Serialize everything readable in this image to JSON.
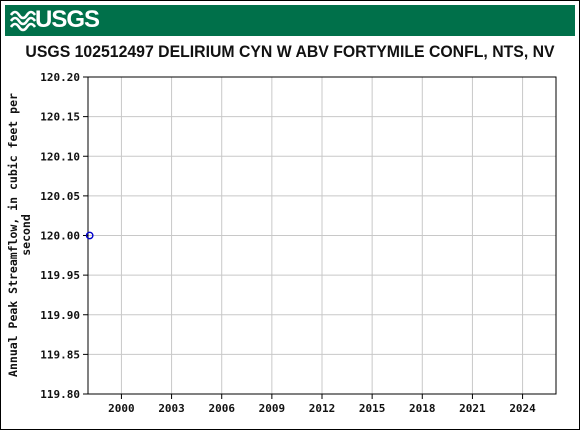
{
  "header": {
    "logo_text": "USGS",
    "brand_color": "#00704a"
  },
  "chart_data": {
    "type": "scatter",
    "title": "USGS 102512497 DELIRIUM CYN W ABV FORTYMILE CONFL, NTS, NV",
    "xlabel": "",
    "ylabel": "Annual Peak Streamflow, in cubic feet per second",
    "xlim": [
      1998,
      2026
    ],
    "ylim": [
      119.8,
      120.2
    ],
    "x_ticks": [
      2000,
      2003,
      2006,
      2009,
      2012,
      2015,
      2018,
      2021,
      2024
    ],
    "y_ticks": [
      119.8,
      119.85,
      119.9,
      119.95,
      120.0,
      120.05,
      120.1,
      120.15,
      120.2
    ],
    "y_tick_labels": [
      "119.80",
      "119.85",
      "119.90",
      "119.95",
      "120.00",
      "120.05",
      "120.10",
      "120.15",
      "120.20"
    ],
    "grid": true,
    "series": [
      {
        "marker": "open-circle",
        "color": "#0000cc",
        "points": [
          {
            "x": 1998.1,
            "y": 120.0
          }
        ]
      }
    ]
  }
}
